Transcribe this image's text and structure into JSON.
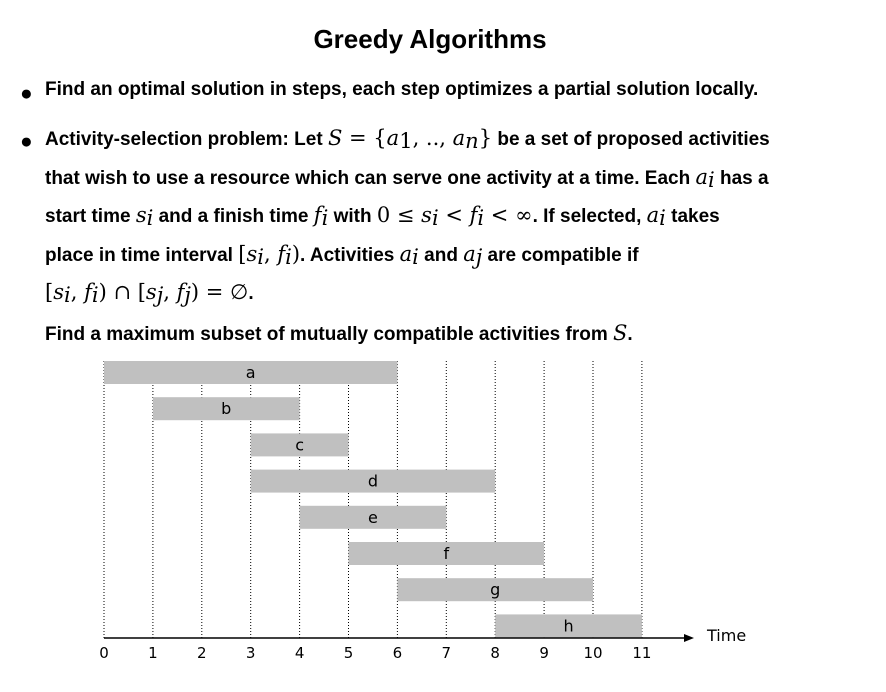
{
  "title": "Greedy Algorithms",
  "bullet1": {
    "text": "Find an optimal solution in steps, each step optimizes a partial solution locally."
  },
  "bullet2": {
    "t1": "Activity-selection problem: Let ",
    "m_S": "S",
    "t_eq": " = {",
    "m_a": "a",
    "sub_1": "1",
    "t_dots": ", .., ",
    "sub_n": "n",
    "t_close": "}",
    "t2": " be a set of proposed activities",
    "t3": "that wish to use a resource which can serve one activity at a time. Each ",
    "m_ai": "a",
    "sub_i": "i",
    "t4": " has a",
    "t5": "start time ",
    "m_si": "s",
    "t6": " and a finish time ",
    "m_fi": "f",
    "t7": " with ",
    "ineq": "0 ≤ ",
    "ineq_mid1": " < ",
    "ineq_mid2": " < ∞",
    "t8": ". If selected, ",
    "t9": " takes",
    "t10": "place in time interval ",
    "interval": "[",
    "interval_close": ")",
    "t11": ". Activities ",
    "t12": " and ",
    "sub_j": "j",
    "t13": " are compatible if",
    "comma": ", ",
    "cap": " ∩ ",
    "eq_empty": " = ∅",
    "period": ".",
    "t14": "Find a maximum subset of mutually compatible activities from ",
    "t15": "."
  },
  "chart_data": {
    "type": "gantt",
    "activities": [
      {
        "name": "a",
        "start": 0,
        "finish": 6
      },
      {
        "name": "b",
        "start": 1,
        "finish": 4
      },
      {
        "name": "c",
        "start": 3,
        "finish": 5
      },
      {
        "name": "d",
        "start": 3,
        "finish": 8
      },
      {
        "name": "e",
        "start": 4,
        "finish": 7
      },
      {
        "name": "f",
        "start": 5,
        "finish": 9
      },
      {
        "name": "g",
        "start": 6,
        "finish": 10
      },
      {
        "name": "h",
        "start": 8,
        "finish": 11
      }
    ],
    "xlabel": "Time",
    "xticks": [
      0,
      1,
      2,
      3,
      4,
      5,
      6,
      7,
      8,
      9,
      10,
      11
    ],
    "xlim": [
      0,
      11
    ],
    "grid": "vertical-dotted",
    "bar_color": "#c0c0c0"
  }
}
